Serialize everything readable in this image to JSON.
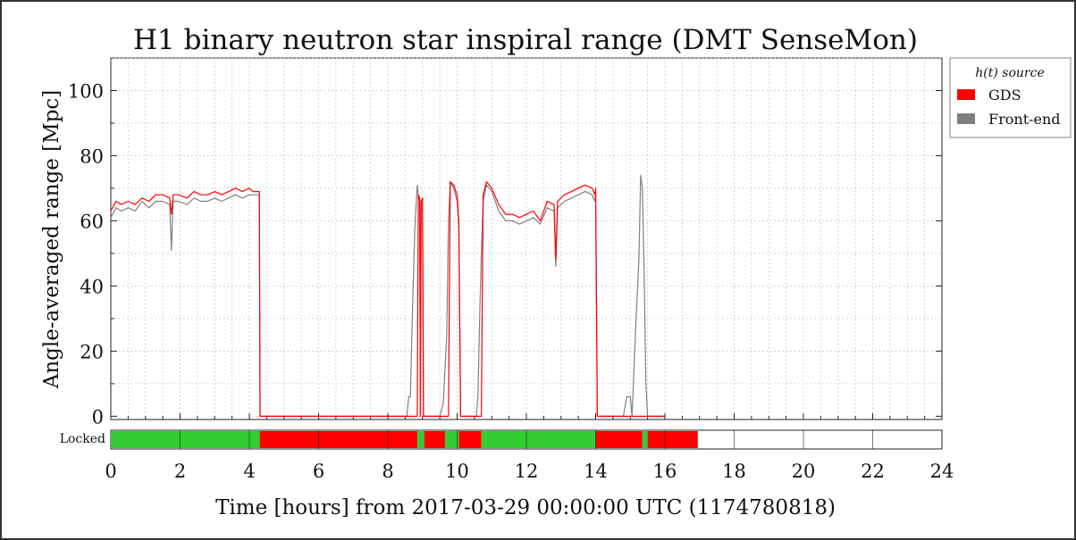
{
  "chart_data": {
    "type": "line",
    "title": "H1 binary neutron star inspiral range (DMT SenseMon)",
    "xlabel": "Time [hours] from 2017-03-29 00:00:00 UTC (1174780818)",
    "ylabel": "Angle-averaged range [Mpc]",
    "xlim": [
      0,
      24
    ],
    "ylim": [
      -1,
      110
    ],
    "xticks": [
      "0",
      "2",
      "4",
      "6",
      "8",
      "10",
      "12",
      "14",
      "16",
      "18",
      "20",
      "22",
      "24"
    ],
    "xtick_values": [
      0,
      2,
      4,
      6,
      8,
      10,
      12,
      14,
      16,
      18,
      20,
      22,
      24
    ],
    "yticks": [
      "0",
      "20",
      "40",
      "60",
      "80",
      "100"
    ],
    "ytick_values": [
      0,
      20,
      40,
      60,
      80,
      100
    ],
    "grid": true,
    "legend": {
      "title": "h(t) source",
      "placement": "outside-right"
    },
    "series": [
      {
        "name": "GDS",
        "color": "#ff0000",
        "x": [
          0.0,
          0.15,
          0.3,
          0.5,
          0.7,
          0.9,
          1.1,
          1.3,
          1.5,
          1.7,
          1.75,
          1.8,
          1.95,
          2.2,
          2.4,
          2.6,
          2.8,
          3.0,
          3.2,
          3.4,
          3.6,
          3.8,
          4.0,
          4.1,
          4.29,
          4.31,
          8.85,
          8.88,
          8.92,
          8.94,
          8.96,
          9.0,
          9.03,
          9.1,
          9.75,
          9.8,
          9.9,
          10.0,
          10.05,
          10.1,
          10.15,
          10.7,
          10.75,
          10.85,
          11.0,
          11.2,
          11.4,
          11.6,
          11.8,
          12.0,
          12.2,
          12.4,
          12.6,
          12.8,
          12.85,
          12.9,
          13.1,
          13.3,
          13.5,
          13.7,
          13.9,
          13.98,
          14.0,
          14.05,
          16.0
        ],
        "y": [
          63,
          66,
          65,
          66,
          65,
          67,
          66,
          68,
          68,
          67,
          62,
          68,
          68,
          67,
          69,
          68,
          68,
          69,
          68,
          69,
          70,
          69,
          70,
          69,
          69,
          0,
          0,
          68,
          67,
          0,
          66,
          67,
          0,
          0,
          0,
          72,
          71,
          68,
          60,
          0,
          0,
          0,
          68,
          72,
          70,
          65,
          62,
          62,
          61,
          62,
          63,
          60,
          66,
          65,
          48,
          66,
          68,
          69,
          70,
          71,
          70,
          68,
          70,
          0,
          0
        ]
      },
      {
        "name": "Front-end",
        "color": "#808080",
        "x": [
          0.0,
          0.15,
          0.3,
          0.5,
          0.7,
          0.9,
          1.1,
          1.3,
          1.5,
          1.7,
          1.75,
          1.8,
          1.95,
          2.2,
          2.4,
          2.6,
          2.8,
          3.0,
          3.2,
          3.4,
          3.6,
          3.8,
          4.0,
          4.1,
          4.29,
          4.31,
          8.55,
          8.6,
          8.65,
          8.7,
          8.78,
          8.85,
          8.88,
          8.92,
          8.94,
          8.96,
          9.0,
          9.03,
          9.1,
          9.5,
          9.6,
          9.7,
          9.75,
          9.8,
          9.9,
          10.0,
          10.05,
          10.1,
          10.15,
          10.55,
          10.6,
          10.65,
          10.7,
          10.75,
          10.85,
          11.0,
          11.2,
          11.4,
          11.6,
          11.8,
          12.0,
          12.2,
          12.4,
          12.6,
          12.8,
          12.85,
          12.9,
          13.1,
          13.3,
          13.5,
          13.7,
          13.9,
          13.98,
          14.0,
          14.05,
          14.8,
          14.9,
          15.0,
          15.05,
          15.15,
          15.25,
          15.3,
          15.35,
          15.4,
          15.45,
          15.5,
          15.55,
          15.6,
          16.0
        ],
        "y": [
          61,
          64,
          63,
          64,
          63,
          66,
          64,
          66,
          66,
          65,
          51,
          66,
          66,
          65,
          67,
          66,
          66,
          67,
          66,
          67,
          68,
          67,
          68,
          68,
          68,
          0,
          0,
          6,
          6,
          28,
          58,
          71,
          68,
          66,
          0,
          65,
          66,
          0,
          0,
          0,
          4,
          25,
          60,
          72,
          70,
          66,
          59,
          0,
          0,
          0,
          6,
          30,
          50,
          66,
          71,
          69,
          63,
          60,
          60,
          59,
          60,
          61,
          59,
          64,
          63,
          46,
          64,
          66,
          67,
          68,
          69,
          68,
          66,
          68,
          0,
          0,
          6,
          6,
          0,
          26,
          48,
          74,
          70,
          44,
          10,
          0,
          0,
          0,
          0
        ]
      }
    ],
    "state_bar": {
      "label": "Locked",
      "segments": [
        {
          "start": 0,
          "end": 4.3,
          "color": "#33cc33"
        },
        {
          "start": 4.3,
          "end": 8.85,
          "color": "#ff0000"
        },
        {
          "start": 8.85,
          "end": 9.05,
          "color": "#33cc33"
        },
        {
          "start": 9.05,
          "end": 9.65,
          "color": "#ff0000"
        },
        {
          "start": 9.65,
          "end": 10.05,
          "color": "#33cc33"
        },
        {
          "start": 10.05,
          "end": 10.7,
          "color": "#ff0000"
        },
        {
          "start": 10.7,
          "end": 14.0,
          "color": "#33cc33"
        },
        {
          "start": 14.0,
          "end": 15.35,
          "color": "#ff0000"
        },
        {
          "start": 15.35,
          "end": 15.5,
          "color": "#33cc33"
        },
        {
          "start": 15.5,
          "end": 16.95,
          "color": "#ff0000"
        }
      ]
    }
  }
}
